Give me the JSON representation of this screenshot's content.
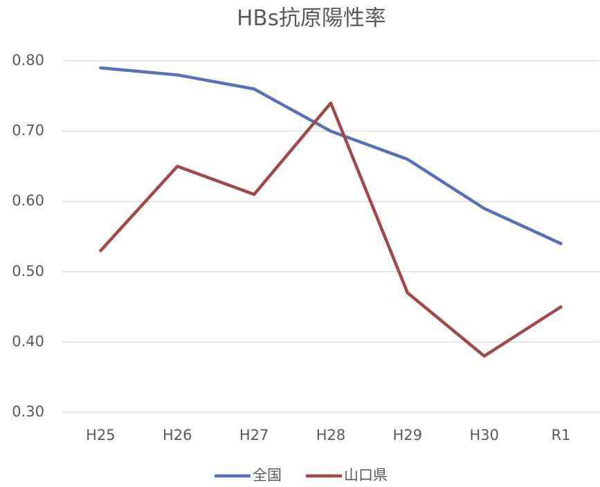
{
  "chart_data": {
    "type": "line",
    "title": "HBs抗原陽性率",
    "categories": [
      "H25",
      "H26",
      "H27",
      "H28",
      "H29",
      "H30",
      "R1"
    ],
    "series": [
      {
        "name": "全国",
        "color": "#5b6fb4",
        "values": [
          0.79,
          0.78,
          0.76,
          0.7,
          0.66,
          0.59,
          0.54
        ]
      },
      {
        "name": "山口県",
        "color": "#9b4b4e",
        "values": [
          0.53,
          0.65,
          0.61,
          0.74,
          0.47,
          0.38,
          0.45
        ]
      }
    ],
    "ylim": [
      0.3,
      0.8
    ],
    "yticks": [
      {
        "value": 0.3,
        "label": "0.30"
      },
      {
        "value": 0.4,
        "label": "0.40"
      },
      {
        "value": 0.5,
        "label": "0.50"
      },
      {
        "value": 0.6,
        "label": "0.60"
      },
      {
        "value": 0.7,
        "label": "0.70"
      },
      {
        "value": 0.8,
        "label": "0.80"
      }
    ],
    "grid": true,
    "legend": "bottom"
  }
}
